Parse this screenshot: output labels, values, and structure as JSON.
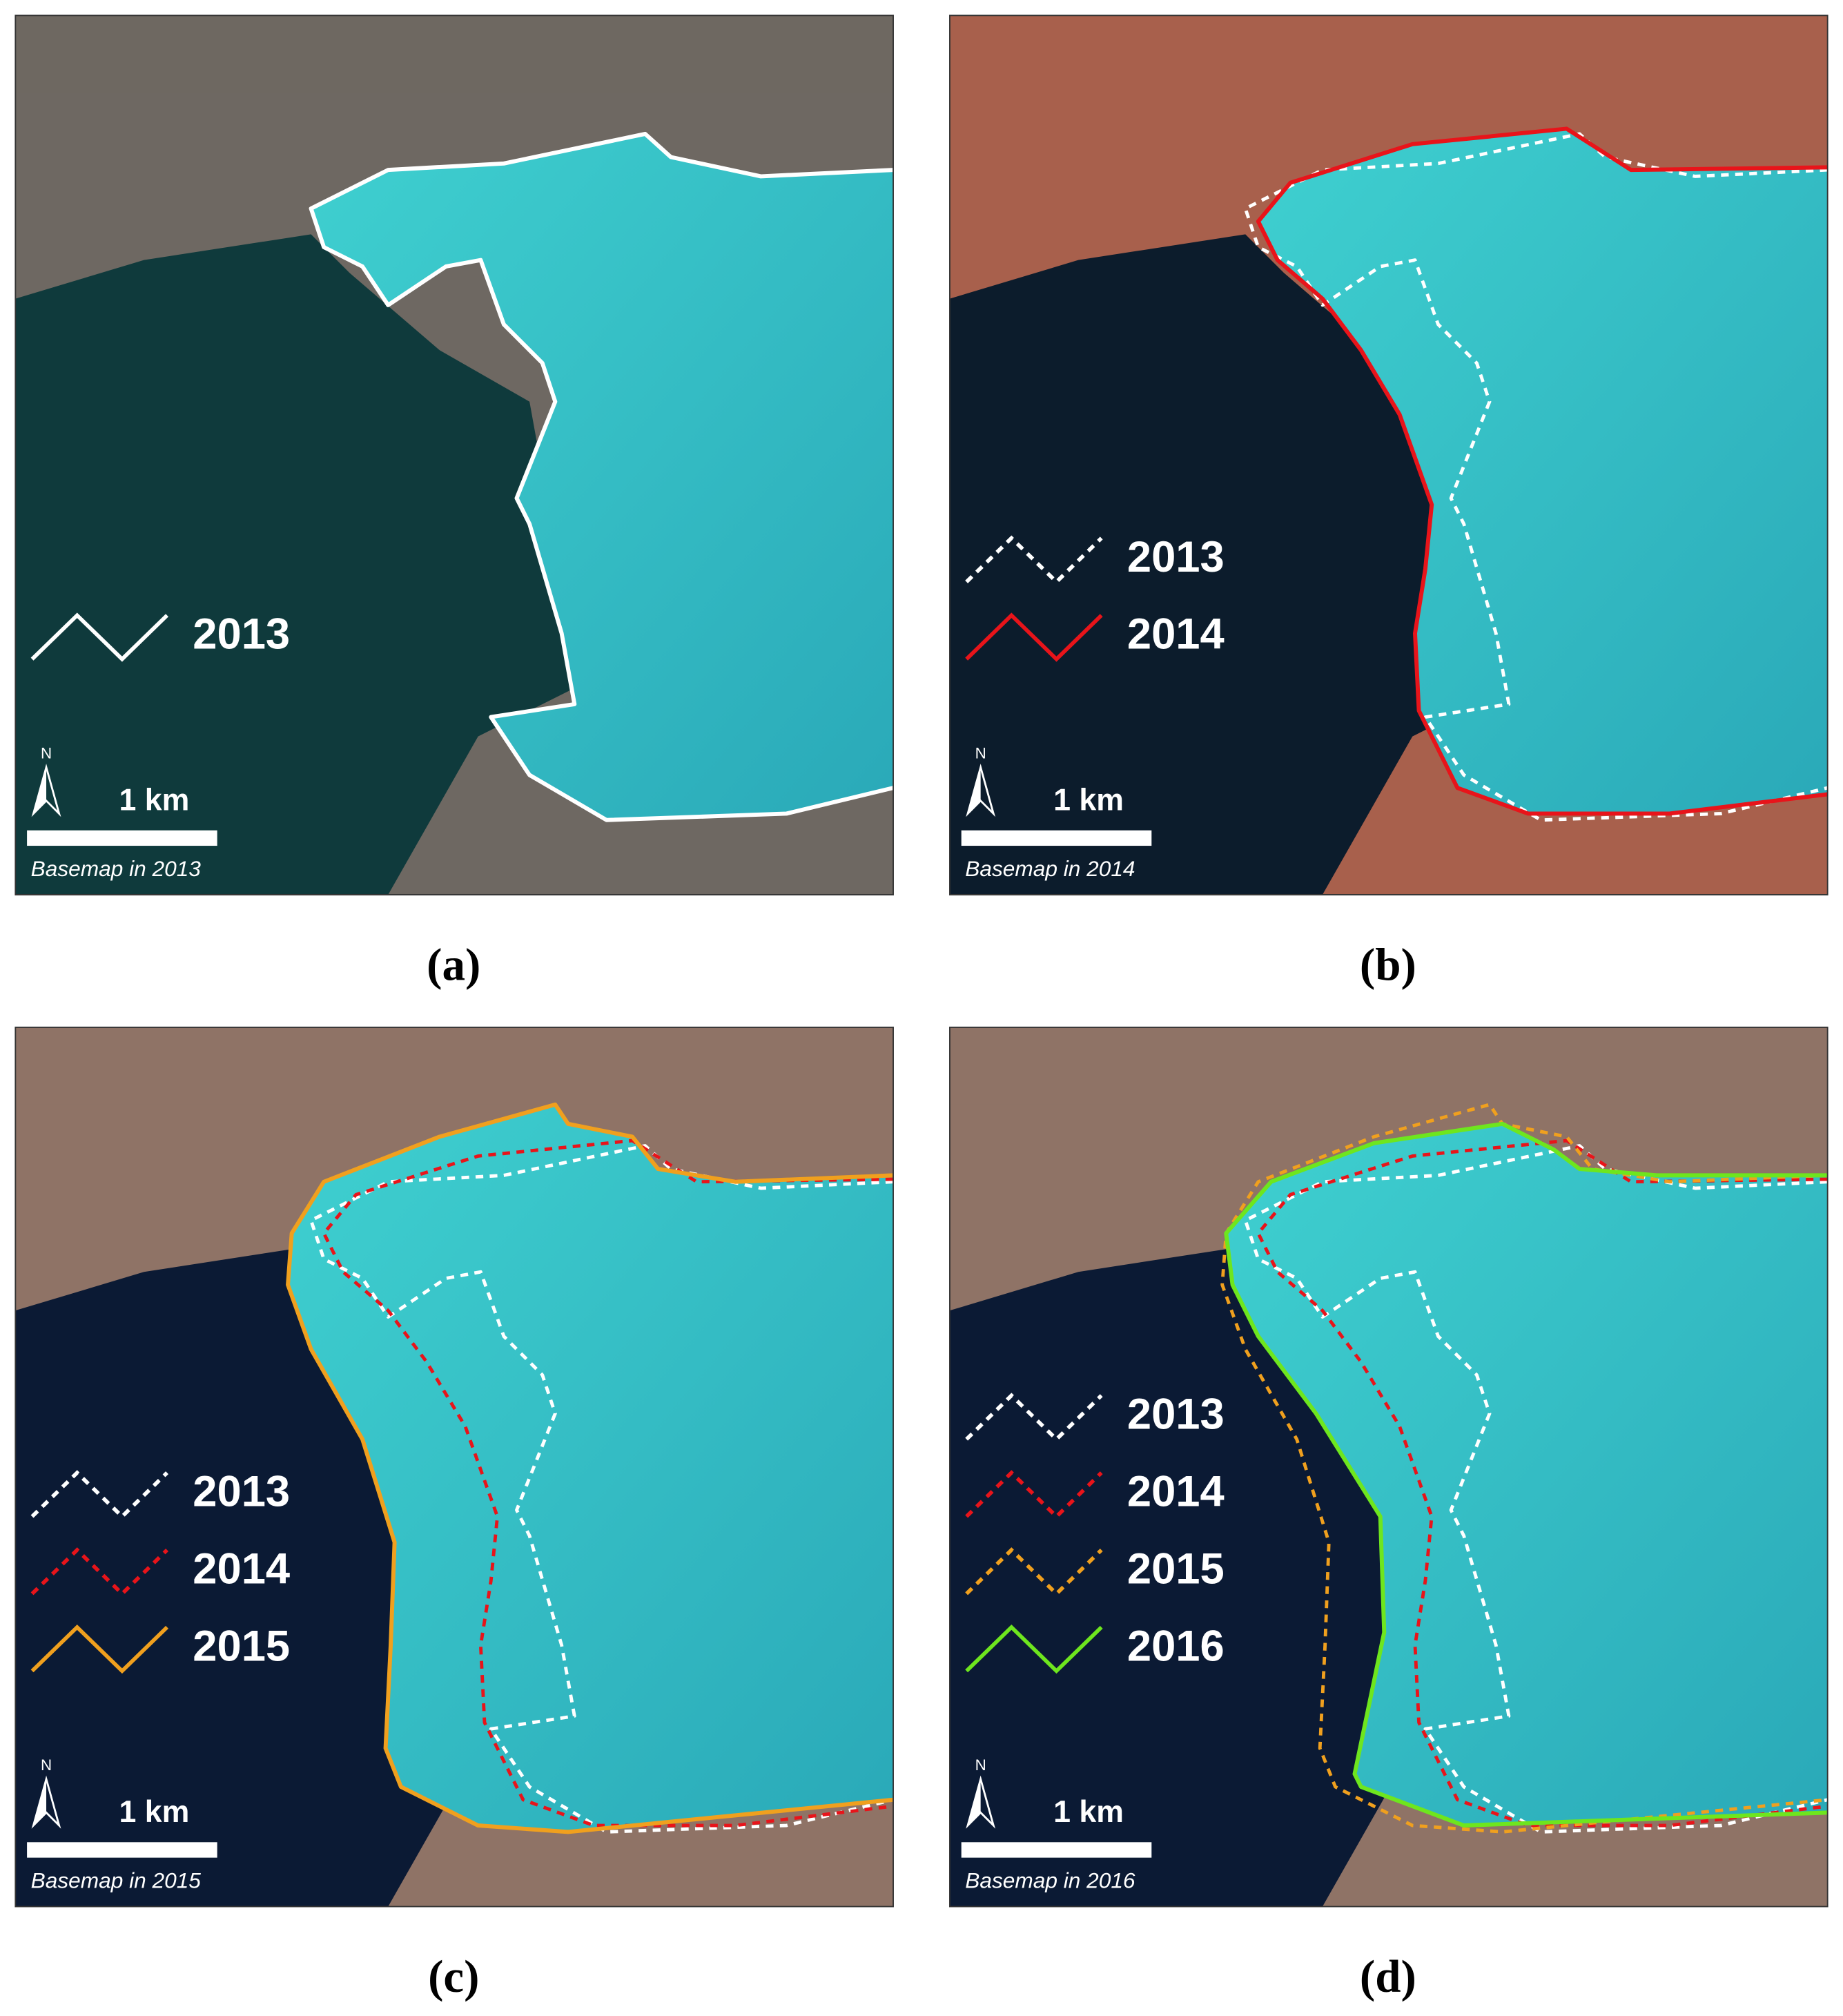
{
  "panels": [
    {
      "label": "(a)",
      "legend": [
        {
          "year": "2013",
          "color": "#ffffff",
          "dashed": false
        }
      ],
      "north": "N",
      "scale": "1 km",
      "basemap": "Basemap in 2013"
    },
    {
      "label": "(b)",
      "legend": [
        {
          "year": "2013",
          "color": "#ffffff",
          "dashed": true
        },
        {
          "year": "2014",
          "color": "#e8141a",
          "dashed": false
        }
      ],
      "north": "N",
      "scale": "1 km",
      "basemap": "Basemap in 2014"
    },
    {
      "label": "(c)",
      "legend": [
        {
          "year": "2013",
          "color": "#ffffff",
          "dashed": true
        },
        {
          "year": "2014",
          "color": "#e8141a",
          "dashed": true
        },
        {
          "year": "2015",
          "color": "#f0a01e",
          "dashed": false
        }
      ],
      "north": "N",
      "scale": "1 km",
      "basemap": "Basemap in 2015"
    },
    {
      "label": "(d)",
      "legend": [
        {
          "year": "2013",
          "color": "#ffffff",
          "dashed": true
        },
        {
          "year": "2014",
          "color": "#e8141a",
          "dashed": true
        },
        {
          "year": "2015",
          "color": "#f0a01e",
          "dashed": true
        },
        {
          "year": "2016",
          "color": "#6ee61e",
          "dashed": false
        }
      ],
      "north": "N",
      "scale": "1 km",
      "basemap": "Basemap in 2016"
    }
  ]
}
